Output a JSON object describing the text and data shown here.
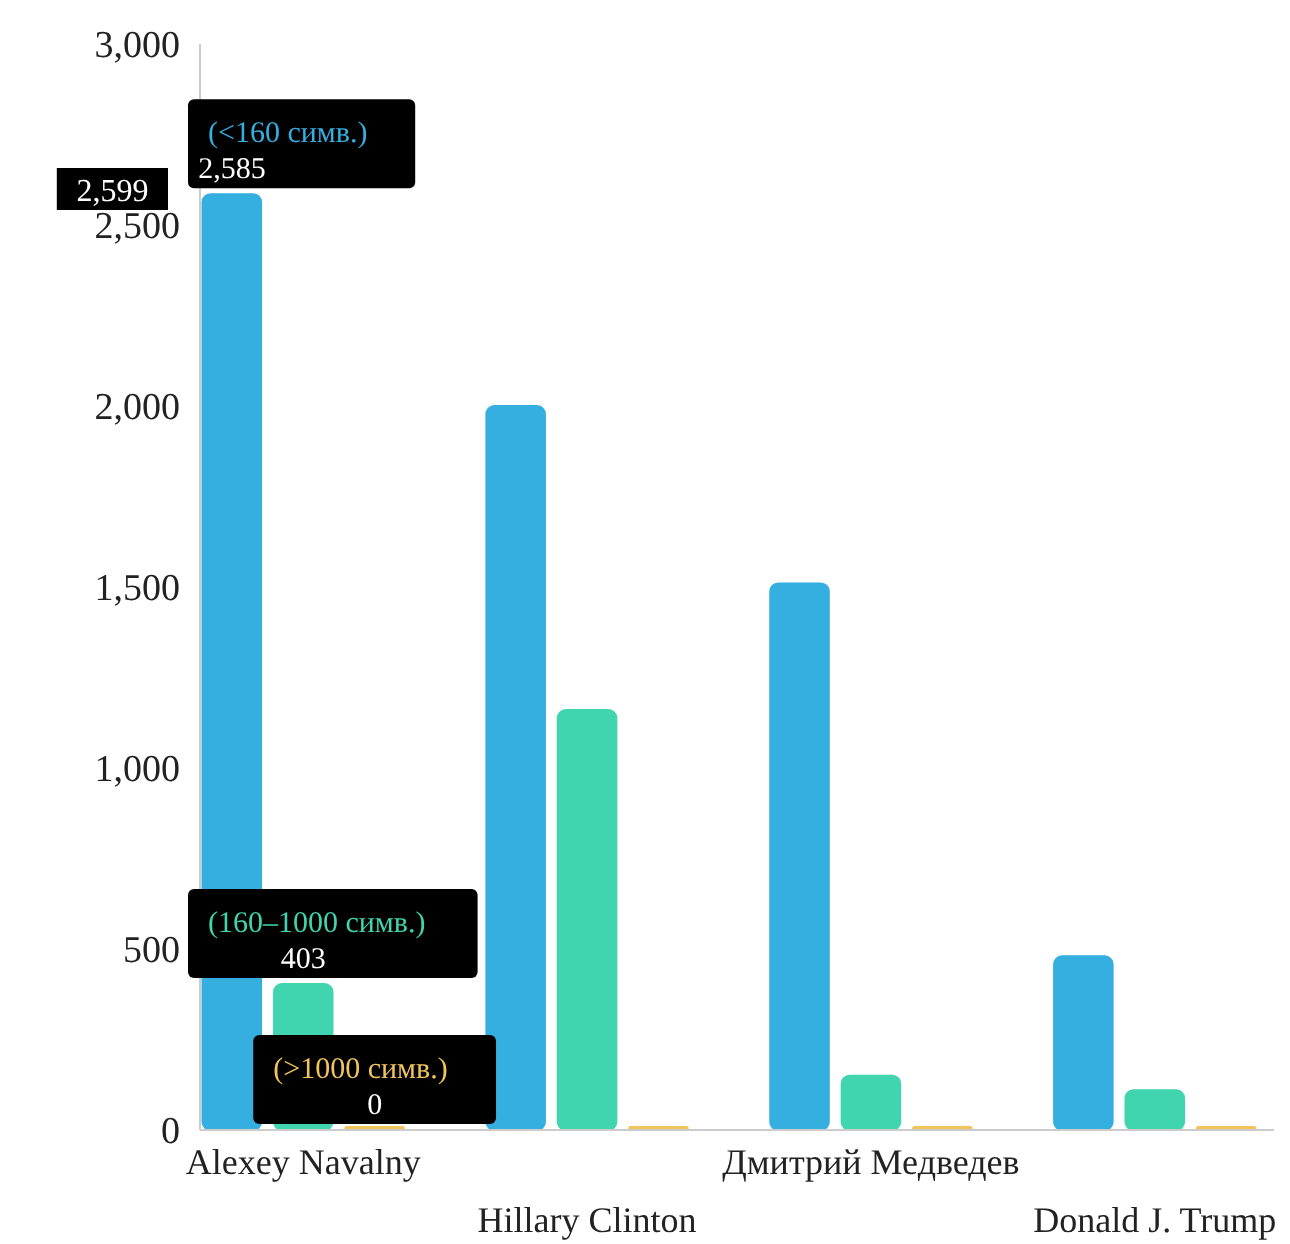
{
  "chart_data": {
    "type": "bar",
    "categories": [
      "Alexey Navalny",
      "Hillary Clinton",
      "Дмитрий Медведев",
      "Donald J. Trump"
    ],
    "series": [
      {
        "name": "(<160 симв.)",
        "color": "#35aee0",
        "values": [
          2585,
          2000,
          1510,
          480
        ],
        "value_labels": [
          "2,585",
          null,
          null,
          null
        ]
      },
      {
        "name": "(160–1000 симв.)",
        "color": "#40d5ae",
        "values": [
          403,
          1160,
          150,
          110
        ],
        "value_labels": [
          "403",
          null,
          null,
          null
        ]
      },
      {
        "name": "(>1000 симв.)",
        "color": "#f2c55c",
        "values": [
          0,
          0,
          0,
          0
        ],
        "value_labels": [
          "0",
          null,
          null,
          null
        ]
      }
    ],
    "ylim": [
      0,
      3000
    ],
    "yticks": [
      {
        "value": 0,
        "label": "0"
      },
      {
        "value": 500,
        "label": "500"
      },
      {
        "value": 1000,
        "label": "1,000"
      },
      {
        "value": 1500,
        "label": "1,500"
      },
      {
        "value": 2000,
        "label": "2,000"
      },
      {
        "value": 2500,
        "label": "2,500"
      },
      {
        "value": 3000,
        "label": "3,000"
      }
    ],
    "grid": false,
    "annotations": [
      "2,599"
    ]
  }
}
